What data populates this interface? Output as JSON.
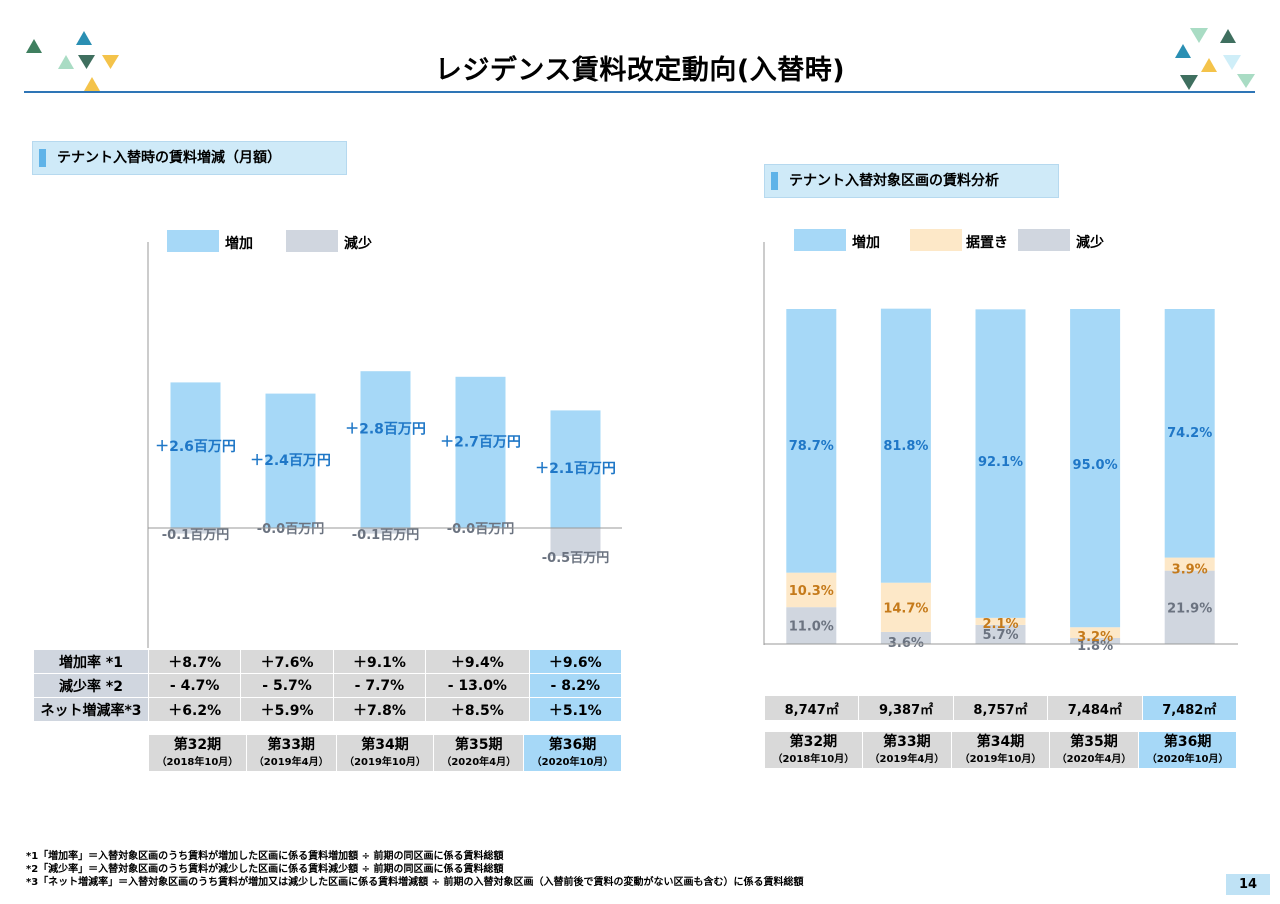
{
  "title": "レジデンス賃料改定動向(入替時)",
  "page_number": "14",
  "left_section_title": "テナント入替時の賃料増減（月額）",
  "right_section_title": "テナント入替対象区画の賃料分析",
  "colors": {
    "increase": "#a6d8f7",
    "decrease": "#d0d6df",
    "flat": "#fde8c8",
    "label_blue": "#1f77c7",
    "label_orange": "#c57a1a",
    "label_gray": "#6b7380",
    "rule": "#2e75b6"
  },
  "left_legend": [
    "増加",
    "減少"
  ],
  "right_legend": [
    "増加",
    "据置き",
    "減少"
  ],
  "chart_data": [
    {
      "type": "bar",
      "categories": [
        "第32期",
        "第33期",
        "第34期",
        "第35期",
        "第36期"
      ],
      "series": [
        {
          "name": "増加",
          "values": [
            2.6,
            2.4,
            2.8,
            2.7,
            2.1
          ],
          "labels": [
            "＋2.6百万円",
            "＋2.4百万円",
            "＋2.8百万円",
            "＋2.7百万円",
            "＋2.1百万円"
          ]
        },
        {
          "name": "減少",
          "values": [
            -0.1,
            -0.0,
            -0.1,
            -0.0,
            -0.5
          ],
          "labels": [
            "-0.1百万円",
            "-0.0百万円",
            "-0.1百万円",
            "-0.0百万円",
            "-0.5百万円"
          ]
        }
      ],
      "legend": "top-left"
    },
    {
      "type": "bar",
      "categories": [
        "第32期",
        "第33期",
        "第34期",
        "第35期",
        "第36期"
      ],
      "stacked": true,
      "series": [
        {
          "name": "減少",
          "values": [
            11.0,
            3.6,
            5.7,
            1.8,
            21.9
          ],
          "labels": [
            "11.0%",
            "3.6%",
            "5.7%",
            "1.8%",
            "21.9%"
          ]
        },
        {
          "name": "据置き",
          "values": [
            10.3,
            14.7,
            2.1,
            3.2,
            3.9
          ],
          "labels": [
            "10.3%",
            "14.7%",
            "2.1%",
            "3.2%",
            "3.9%"
          ]
        },
        {
          "name": "増加",
          "values": [
            78.7,
            81.8,
            92.1,
            95.0,
            74.2
          ],
          "labels": [
            "78.7%",
            "81.8%",
            "92.1%",
            "95.0%",
            "74.2%"
          ]
        }
      ],
      "ylim": [
        0,
        100
      ],
      "legend": "top-left"
    }
  ],
  "rate_table": {
    "rows": [
      {
        "label": "増加率 *1",
        "values": [
          "＋8.7%",
          "＋7.6%",
          "＋9.1%",
          "＋9.4%",
          "＋9.6%"
        ]
      },
      {
        "label": "減少率 *2",
        "values": [
          "- 4.7%",
          "- 5.7%",
          "- 7.7%",
          "- 13.0%",
          "- 8.2%"
        ]
      },
      {
        "label": "ネット増減率*3",
        "values": [
          "＋6.2%",
          "＋5.9%",
          "＋7.8%",
          "＋8.5%",
          "＋5.1%"
        ]
      }
    ]
  },
  "area_row": [
    "8,747㎡",
    "9,387㎡",
    "8,757㎡",
    "7,484㎡",
    "7,482㎡"
  ],
  "periods": [
    {
      "name": "第32期",
      "date": "（2018年10月）"
    },
    {
      "name": "第33期",
      "date": "（2019年4月）"
    },
    {
      "name": "第34期",
      "date": "（2019年10月）"
    },
    {
      "name": "第35期",
      "date": "（2020年4月）"
    },
    {
      "name": "第36期",
      "date": "（2020年10月）"
    }
  ],
  "notes": [
    "*1「増加率」＝入替対象区画のうち賃料が増加した区画に係る賃料増加額 ÷ 前期の同区画に係る賃料総額",
    "*2「減少率」＝入替対象区画のうち賃料が減少した区画に係る賃料減少額 ÷ 前期の同区画に係る賃料総額",
    "*3「ネット増減率」＝入替対象区画のうち賃料が増加又は減少した区画に係る賃料増減額 ÷ 前期の入替対象区画（入替前後で賃料の変動がない区画も含む）に係る賃料総額"
  ]
}
